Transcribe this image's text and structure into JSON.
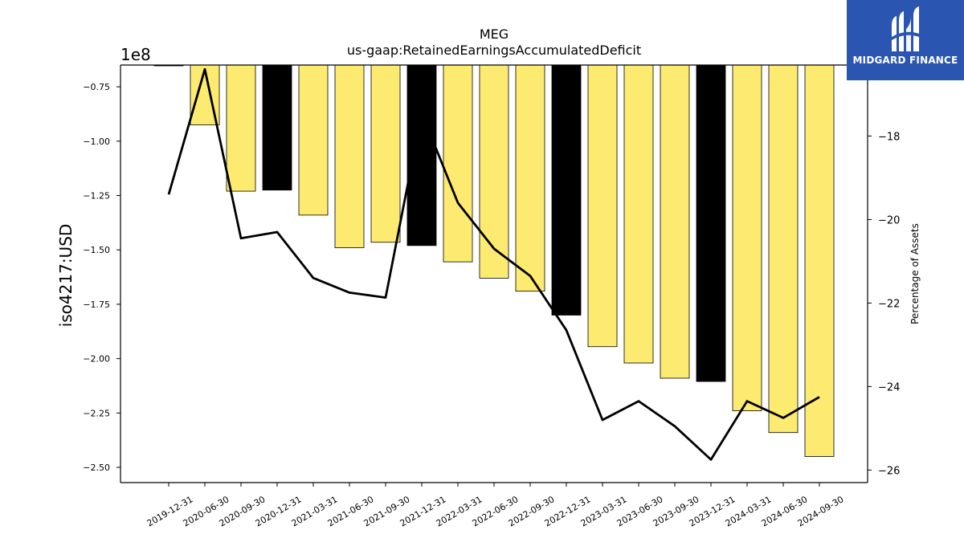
{
  "chart_data": {
    "type": "bar",
    "title": "MEG",
    "subtitle": "us-gaap:RetainedEarningsAccumulatedDeficit",
    "ylabel": "iso4217:USD",
    "y2label": "Percentage of Assets",
    "y_offset_label": "1e8",
    "categories": [
      "2019-12-31",
      "2020-06-30",
      "2020-09-30",
      "2020-12-31",
      "2021-03-31",
      "2021-06-30",
      "2021-09-30",
      "2021-12-31",
      "2022-03-31",
      "2022-06-30",
      "2022-09-30",
      "2022-12-31",
      "2023-03-31",
      "2023-06-30",
      "2023-09-30",
      "2023-12-31",
      "2024-03-31",
      "2024-06-30",
      "2024-09-30"
    ],
    "series": [
      {
        "type": "bar",
        "values": [
          -0.653,
          -0.925,
          -1.23,
          -1.225,
          -1.34,
          -1.49,
          -1.465,
          -1.48,
          -1.555,
          -1.63,
          -1.69,
          -1.8,
          -1.945,
          -2.02,
          -2.09,
          -2.105,
          -2.24,
          -2.34,
          -2.45
        ],
        "annual": [
          true,
          false,
          false,
          true,
          false,
          false,
          false,
          true,
          false,
          false,
          false,
          true,
          false,
          false,
          false,
          true,
          false,
          false,
          false
        ],
        "annual_color": "#000000",
        "quarter_color": "#fdeb71"
      },
      {
        "type": "line",
        "axis": "right",
        "values": [
          -19.4,
          -16.4,
          -20.45,
          -20.3,
          -21.4,
          -21.75,
          -21.87,
          -17.45,
          -19.6,
          -20.7,
          -21.35,
          -22.65,
          -24.8,
          -24.35,
          -24.95,
          -25.75,
          -24.35,
          -24.75,
          -24.25
        ],
        "color": "#000000"
      }
    ],
    "ylim": [
      -2.57,
      -0.65
    ],
    "y2lim": [
      -26.3,
      -16.3
    ],
    "yticks": [
      -2.5,
      -2.25,
      -2.0,
      -1.75,
      -1.5,
      -1.25,
      -1.0,
      -0.75
    ],
    "yticklabels": [
      "−2.50",
      "−2.25",
      "−2.00",
      "−1.75",
      "−1.50",
      "−1.25",
      "−1.00",
      "−0.75"
    ],
    "y2ticks": [
      -26,
      -24,
      -22,
      -20,
      -18
    ],
    "y2ticklabels": [
      "−26",
      "−24",
      "−22",
      "−20",
      "−18"
    ],
    "grid": false,
    "legend": "none"
  },
  "logo": {
    "text": "MIDGARD FINANCE",
    "color": "#2a55b0"
  }
}
